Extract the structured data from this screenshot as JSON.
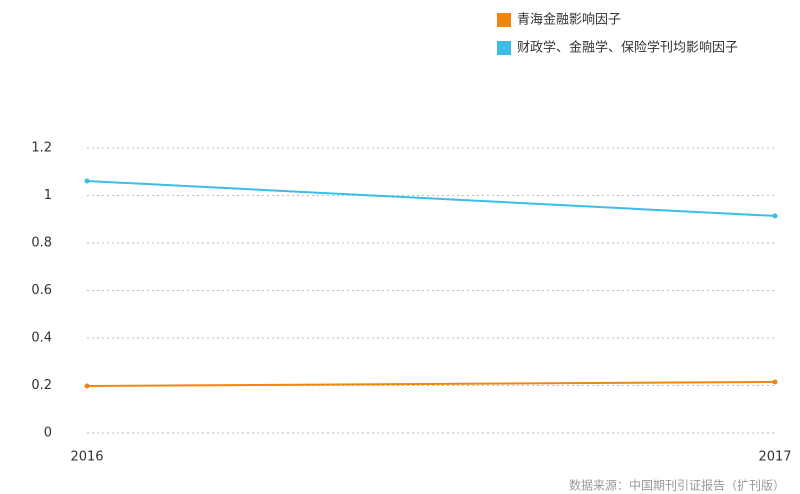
{
  "chart_data": {
    "type": "line",
    "x": [
      "2016",
      "2017"
    ],
    "series": [
      {
        "name": "青海金融影响因子",
        "color": "#f0850f",
        "values": [
          0.198,
          0.215
        ]
      },
      {
        "name": "财政学、金融学、保险学刊均影响因子",
        "color": "#3cbde8",
        "values": [
          1.061,
          0.914
        ]
      }
    ],
    "ylim": [
      0,
      1.2
    ],
    "yticks": [
      0,
      0.2,
      0.4,
      0.6,
      0.8,
      1,
      1.2
    ],
    "grid": true,
    "legend": "top-right",
    "source": "数据来源：中国期刊引证报告（扩刊版）"
  }
}
